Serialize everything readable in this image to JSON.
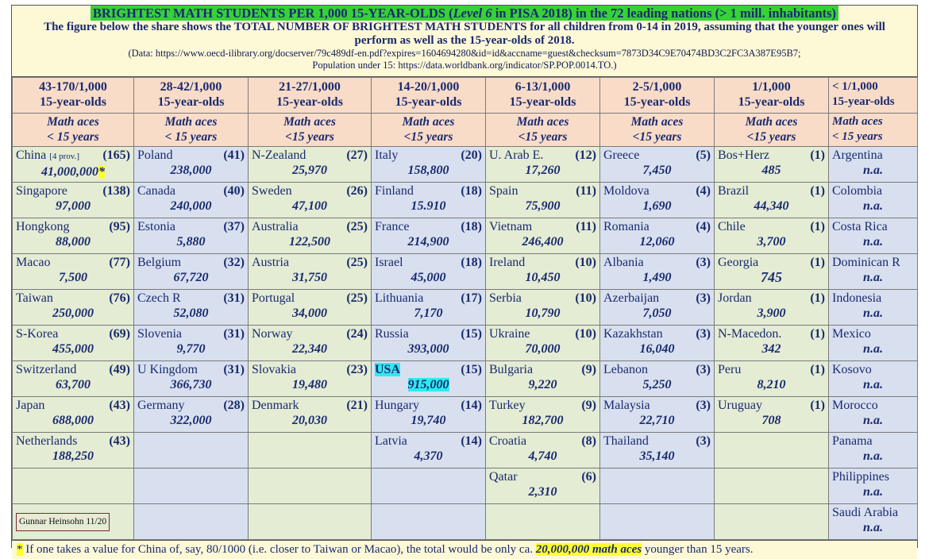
{
  "title": {
    "pre": "BRIGHTEST  MATH  STUDENTS  PER  1,000  15-YEAR-OLDS  (",
    "ital": "Level 6",
    "post": " in PISA 2018)  in  the  72  leading nations  (> 1 mill. inhabitants)"
  },
  "subtitle": "The figure below the share shows the TOTAL NUMBER OF BRIGHTEST MATH STUDENTS for all children from 0-14 in 2019, assuming that the younger ones will perform as well as the 15-year-olds of 2018.",
  "source1": "(Data: https://www.oecd-ilibrary.org/docserver/79c489df-en.pdf?expires=1604694280&id=id&accname=guest&checksum=7873D34C9E70474BD3C2FC3A387E95B7;",
  "source2": "Population under 15:  https://data.worldbank.org/indicator/SP.POP.0014.TO.)",
  "columns": [
    {
      "range": "43-170/1,000",
      "unit": "15-year-olds",
      "aces": "Math aces",
      "age": "< 15 years",
      "shade": "g"
    },
    {
      "range": "28-42/1,000",
      "unit": "15-year-olds",
      "aces": "Math aces",
      "age": "< 15 years",
      "shade": "b"
    },
    {
      "range": "21-27/1,000",
      "unit": "15-year-olds",
      "aces": "Math aces",
      "age": "<15 years",
      "shade": "g"
    },
    {
      "range": "14-20/1,000",
      "unit": "15-year-olds",
      "aces": "Math aces",
      "age": "<15 years",
      "shade": "b"
    },
    {
      "range": "6-13/1,000",
      "unit": "15-year-olds",
      "aces": "Math aces",
      "age": "<15 years",
      "shade": "g"
    },
    {
      "range": "2-5/1,000",
      "unit": "15-year-olds",
      "aces": "Math aces",
      "age": "<15 years",
      "shade": "b"
    },
    {
      "range": "1/1,000",
      "unit": "15-year-olds",
      "aces": "Math aces",
      "age": "<15 years",
      "shade": "g"
    },
    {
      "range": "< 1/1,000",
      "unit": "15-year-olds",
      "aces": "Math aces",
      "age": "< 15 years",
      "shade": "b"
    }
  ],
  "cells": [
    [
      {
        "name": "China",
        "note": "[4 prov.]",
        "value": "(165)",
        "pop": "41,000,000",
        "mark": "*"
      },
      {
        "name": "Singapore",
        "value": "(138)",
        "pop": "97,000"
      },
      {
        "name": "Hongkong",
        "value": "(95)",
        "pop": "88,000"
      },
      {
        "name": "Macao",
        "value": "(77)",
        "pop": "7,500"
      },
      {
        "name": "Taiwan",
        "value": "(76)",
        "pop": "250,000"
      },
      {
        "name": "S-Korea",
        "value": "(69)",
        "pop": "455,000"
      },
      {
        "name": "Switzerland",
        "value": "(49)",
        "pop": "63,700"
      },
      {
        "name": "Japan",
        "value": "(43)",
        "pop": "688,000"
      },
      {
        "name": "Netherlands",
        "value": "(43)",
        "pop": "188,250"
      },
      null,
      null
    ],
    [
      {
        "name": "Poland",
        "value": "(41)",
        "pop": "238,000"
      },
      {
        "name": "Canada",
        "value": "(40)",
        "pop": "240,000"
      },
      {
        "name": "Estonia",
        "value": "(37)",
        "pop": "5,880"
      },
      {
        "name": "Belgium",
        "value": "(32)",
        "pop": "67,720"
      },
      {
        "name": "Czech R",
        "value": "(31)",
        "pop": "52,080"
      },
      {
        "name": "Slovenia",
        "value": "(31)",
        "pop": "9,770"
      },
      {
        "name": "U Kingdom",
        "value": "(31)",
        "pop": "366,730"
      },
      {
        "name": "Germany",
        "value": "(28)",
        "pop": "322,000"
      },
      null,
      null,
      null
    ],
    [
      {
        "name": "N-Zealand",
        "value": "(27)",
        "pop": "25,970"
      },
      {
        "name": "Sweden",
        "value": "(26)",
        "pop": "47,100"
      },
      {
        "name": "Australia",
        "value": "(25)",
        "pop": "122,500"
      },
      {
        "name": "Austria",
        "value": "(25)",
        "pop": "31,750"
      },
      {
        "name": "Portugal",
        "value": "(25)",
        "pop": "34,000"
      },
      {
        "name": "Norway",
        "value": "(24)",
        "pop": "22,340"
      },
      {
        "name": "Slovakia",
        "value": "(23)",
        "pop": "19,480"
      },
      {
        "name": "Denmark",
        "value": "(21)",
        "pop": "20,030"
      },
      null,
      null,
      null
    ],
    [
      {
        "name": "Italy",
        "value": "(20)",
        "pop": "158,800"
      },
      {
        "name": "Finland",
        "value": "(18)",
        "pop": "15.910"
      },
      {
        "name": "France",
        "value": "(18)",
        "pop": "214,900"
      },
      {
        "name": "Israel",
        "value": "(18)",
        "pop": "45,000"
      },
      {
        "name": "Lithuania",
        "value": "(17)",
        "pop": "7,170"
      },
      {
        "name": "Russia",
        "value": "(15)",
        "pop": "393,000"
      },
      {
        "name": "USA",
        "value": "(15)",
        "pop": "915,000",
        "highlight": true
      },
      {
        "name": "Hungary",
        "value": "(14)",
        "pop": "19,740"
      },
      {
        "name": "Latvia",
        "value": "(14)",
        "pop": "4,370"
      },
      null,
      null
    ],
    [
      {
        "name": "U. Arab E.",
        "value": "(12)",
        "pop": "17,260"
      },
      {
        "name": "Spain",
        "value": "(11)",
        "pop": "75,900"
      },
      {
        "name": "Vietnam",
        "value": "(11)",
        "pop": "246,400"
      },
      {
        "name": "Ireland",
        "value": "(10)",
        "pop": "10,450"
      },
      {
        "name": "Serbia",
        "value": "(10)",
        "pop": "10,790"
      },
      {
        "name": "Ukraine",
        "value": "(10)",
        "pop": "70,000"
      },
      {
        "name": "Bulgaria",
        "value": "(9)",
        "pop": "9,220"
      },
      {
        "name": "Turkey",
        "value": "(9)",
        "pop": "182,700"
      },
      {
        "name": "Croatia",
        "value": "(8)",
        "pop": "4,740"
      },
      {
        "name": "Qatar",
        "value": "(6)",
        "pop": "2,310"
      },
      null
    ],
    [
      {
        "name": "Greece",
        "value": "(5)",
        "pop": "7,450"
      },
      {
        "name": "Moldova",
        "value": "(4)",
        "pop": "1,690"
      },
      {
        "name": "Romania",
        "value": "(4)",
        "pop": "12,060"
      },
      {
        "name": "Albania",
        "value": "(3)",
        "pop": "1,490"
      },
      {
        "name": "Azerbaijan",
        "value": "(3)",
        "pop": "7,050"
      },
      {
        "name": "Kazakhstan",
        "value": "(3)",
        "pop": "16,040"
      },
      {
        "name": "Lebanon",
        "value": "(3)",
        "pop": "5,250"
      },
      {
        "name": "Malaysia",
        "value": "(3)",
        "pop": "22,710"
      },
      {
        "name": "Thailand",
        "value": "(3)",
        "pop": "35,140"
      },
      null,
      null
    ],
    [
      {
        "name": "Bos+Herz",
        "value": "(1)",
        "pop": "485"
      },
      {
        "name": "Brazil",
        "value": "(1)",
        "pop": "44,340"
      },
      {
        "name": "Chile",
        "value": "(1)",
        "pop": "3,700"
      },
      {
        "name": "Georgia",
        "value": "(1)",
        "pop": "745"
      },
      {
        "name": "Jordan",
        "value": "(1)",
        "pop": "3,900"
      },
      {
        "name": "N-Macedon.",
        "value": "(1)",
        "pop": "342"
      },
      {
        "name": "Peru",
        "value": "(1)",
        "pop": "8,210"
      },
      {
        "name": "Uruguay",
        "value": "(1)",
        "pop": "708"
      },
      null,
      null,
      null
    ],
    [
      {
        "name": "Argentina",
        "value": "",
        "pop": "n.a."
      },
      {
        "name": "Colombia",
        "value": "",
        "pop": "n.a."
      },
      {
        "name": "Costa Rica",
        "value": "",
        "pop": "n.a."
      },
      {
        "name": "Dominican R",
        "value": "",
        "pop": "n.a."
      },
      {
        "name": "Indonesia",
        "value": "",
        "pop": "n.a."
      },
      {
        "name": "Mexico",
        "value": "",
        "pop": "n.a."
      },
      {
        "name": "Kosovo",
        "value": "",
        "pop": "n.a."
      },
      {
        "name": "Morocco",
        "value": "",
        "pop": "n.a."
      },
      {
        "name": "Panama",
        "value": "",
        "pop": "n.a."
      },
      {
        "name": "Philippines",
        "value": "",
        "pop": "n.a."
      },
      {
        "name": "Saudi Arabia",
        "value": "",
        "pop": "n.a."
      }
    ]
  ],
  "signature": "Gunnar Heinsohn 11/20",
  "footnote": {
    "star": "*",
    "text": " If one takes a value for China of, say, 80/1000 (i.e. closer to Taiwan or Macao), the total would be only ca. ",
    "bold": "20,000,000 math aces",
    "tail": " younger than 15 years."
  }
}
